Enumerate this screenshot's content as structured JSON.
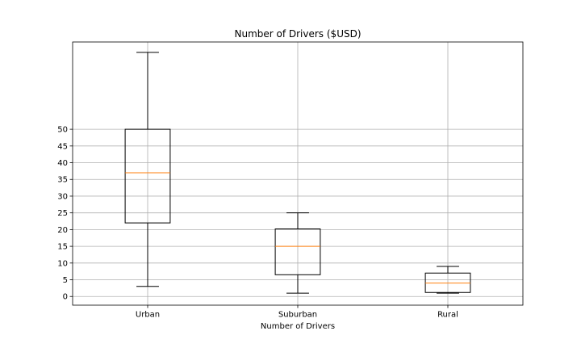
{
  "chart_data": {
    "type": "box",
    "title": "Number of Drivers ($USD)",
    "xlabel": "Number of Drivers",
    "ylabel": "",
    "categories": [
      "Urban",
      "Suburban",
      "Rural"
    ],
    "yticks": [
      0,
      5,
      10,
      15,
      20,
      25,
      30,
      35,
      40,
      45,
      50
    ],
    "ylim": [
      -2.6,
      76.1
    ],
    "grid": true,
    "boxes": [
      {
        "label": "Urban",
        "whisker_low": 3,
        "q1": 22,
        "median": 37,
        "q3": 50,
        "whisker_high": 73
      },
      {
        "label": "Suburban",
        "whisker_low": 1,
        "q1": 6.5,
        "median": 15,
        "q3": 20.2,
        "whisker_high": 25
      },
      {
        "label": "Rural",
        "whisker_low": 1,
        "q1": 1.2,
        "median": 4,
        "q3": 7,
        "whisker_high": 9
      }
    ],
    "colors": {
      "box": "#000000",
      "median": "#ff7f0e",
      "grid": "#b0b0b0"
    }
  }
}
